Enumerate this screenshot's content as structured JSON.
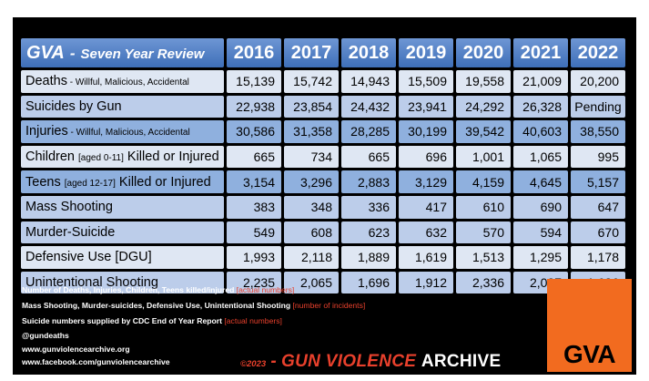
{
  "header": {
    "gva": "GVA",
    "dash": "-",
    "review": "Seven Year Review",
    "years": [
      "2016",
      "2017",
      "2018",
      "2019",
      "2020",
      "2021",
      "2022"
    ]
  },
  "rows": [
    {
      "label": "Deaths",
      "sub": " - Willful, Malicious, Accidental",
      "suffix": "",
      "values": [
        "15,139",
        "15,742",
        "14,943",
        "15,509",
        "19,558",
        "21,009",
        "20,200"
      ]
    },
    {
      "label": "Suicides by Gun",
      "sub": "",
      "suffix": "",
      "values": [
        "22,938",
        "23,854",
        "24,432",
        "23,941",
        "24,292",
        "26,328",
        "Pending"
      ]
    },
    {
      "label": "Injuries",
      "sub": " - Willful, Malicious, Accidental",
      "suffix": "",
      "values": [
        "30,586",
        "31,358",
        "28,285",
        "30,199",
        "39,542",
        "40,603",
        "38,550"
      ]
    },
    {
      "label": "Children ",
      "sub": "[aged 0-11]",
      "suffix": " Killed or Injured",
      "values": [
        "665",
        "734",
        "665",
        "696",
        "1,001",
        "1,065",
        "995"
      ]
    },
    {
      "label": "Teens ",
      "sub": "[aged 12-17]",
      "suffix": " Killed or Injured",
      "values": [
        "3,154",
        "3,296",
        "2,883",
        "3,129",
        "4,159",
        "4,645",
        "5,157"
      ]
    },
    {
      "label": "Mass Shooting",
      "sub": "",
      "suffix": "",
      "values": [
        "383",
        "348",
        "336",
        "417",
        "610",
        "690",
        "647"
      ]
    },
    {
      "label": "Murder-Suicide",
      "sub": "",
      "suffix": "",
      "values": [
        "549",
        "608",
        "623",
        "632",
        "570",
        "594",
        "670"
      ]
    },
    {
      "label": "Defensive Use [DGU]",
      "sub": "",
      "suffix": "",
      "values": [
        "1,993",
        "2,118",
        "1,889",
        "1,619",
        "1,513",
        "1,295",
        "1,178"
      ]
    },
    {
      "label": "Unintentional Shooting",
      "sub": "",
      "suffix": "",
      "values": [
        "2,235",
        "2,065",
        "1,696",
        "1,912",
        "2,336",
        "2,027",
        "1,626"
      ]
    }
  ],
  "notes": [
    {
      "text": "Number of Deaths, Injuries, Children, Teens  killed/injured ",
      "bracket": "[actual numbers]"
    },
    {
      "text": "Mass Shooting, Murder-suicides, Defensive Use, Unintentional Shooting ",
      "bracket": "[number of incidents]"
    },
    {
      "text": "Suicide numbers supplied by CDC End of Year Report ",
      "bracket": "[actual numbers]"
    }
  ],
  "contact": {
    "handle": "@gundeaths",
    "website": "www.gunviolencearchive.org",
    "facebook": "www.facebook.com/gunviolencearchive"
  },
  "footer": {
    "copyright": "©2023",
    "dash": " - ",
    "name_red": "GUN VIOLENCE ",
    "name_white": "ARCHIVE"
  },
  "logo": {
    "text": "GVA"
  },
  "colors": {
    "header_blue": "#4a78bf",
    "row_light": "#dfe7f3",
    "row_mid": "#bccdea",
    "row_dark": "#8fb0de",
    "accent_red": "#e8402c",
    "logo_orange": "#f26b1f",
    "background": "#000000"
  }
}
